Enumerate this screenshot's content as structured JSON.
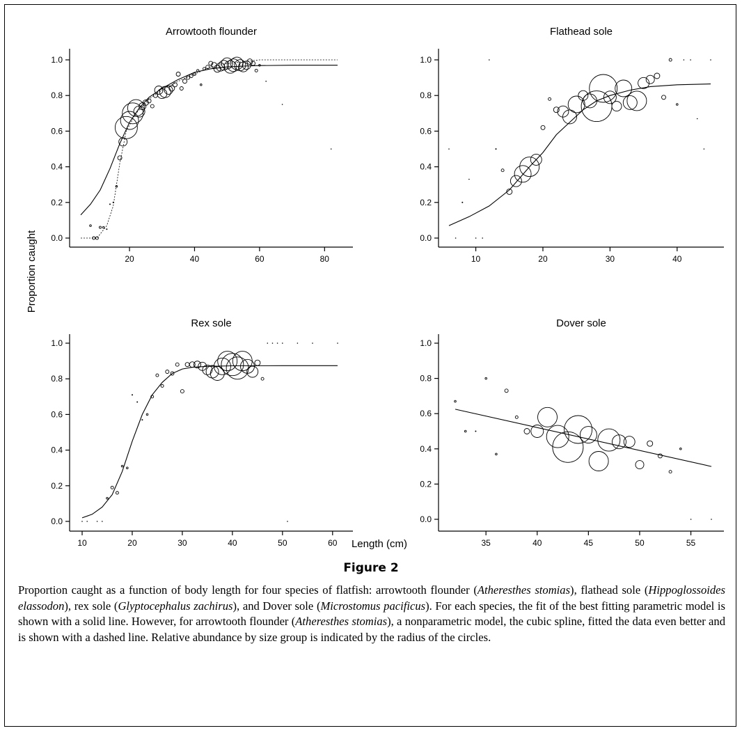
{
  "figure": {
    "label": "Figure 2",
    "x_axis_title": "Length (cm)",
    "y_axis_title": "Proportion caught",
    "caption": [
      {
        "t": "Proportion caught as a function of body length for four species of flatfish: arrowtooth flounder ("
      },
      {
        "t": "Atheresthes stomias",
        "i": true
      },
      {
        "t": "), flathead sole ("
      },
      {
        "t": "Hippoglossoides elassodon",
        "i": true
      },
      {
        "t": "), rex sole ("
      },
      {
        "t": "Glyptocephalus zachirus",
        "i": true
      },
      {
        "t": "), and Dover sole ("
      },
      {
        "t": "Microstomus pacificus",
        "i": true
      },
      {
        "t": "). For each species, the fit of the best fitting parametric model is shown with a solid line. However, for arrowtooth flounder ("
      },
      {
        "t": "Atheresthes stomias",
        "i": true
      },
      {
        "t": "), a nonparametric model, the cubic spline, fitted the data even better and is shown with a dashed line. Relative abundance by size group is indicated by the radius of the circles."
      }
    ]
  },
  "chart_data": [
    {
      "type": "scatter",
      "title": "Arrowtooth flounder",
      "xlim": [
        4,
        85
      ],
      "ylim": [
        0,
        1
      ],
      "xticks": [
        20,
        40,
        60,
        80
      ],
      "yticks": [
        "0.0",
        "0.2",
        "0.4",
        "0.6",
        "0.8",
        "1.0"
      ],
      "points": [
        [
          8,
          0.07,
          1.3
        ],
        [
          9,
          0.0,
          2
        ],
        [
          10,
          0.0,
          2
        ],
        [
          11,
          0.06,
          1.5
        ],
        [
          12,
          0.06,
          1.3
        ],
        [
          13,
          0.05,
          1
        ],
        [
          14,
          0.19,
          1
        ],
        [
          15,
          0.2,
          1
        ],
        [
          16,
          0.29,
          1.3
        ],
        [
          17,
          0.45,
          3
        ],
        [
          18,
          0.54,
          6
        ],
        [
          19,
          0.62,
          16
        ],
        [
          20,
          0.66,
          13
        ],
        [
          21,
          0.7,
          15
        ],
        [
          22,
          0.73,
          12
        ],
        [
          23,
          0.71,
          8
        ],
        [
          24,
          0.74,
          5
        ],
        [
          25,
          0.76,
          4
        ],
        [
          26,
          0.77,
          3
        ],
        [
          27,
          0.74,
          2.5
        ],
        [
          28,
          0.8,
          3
        ],
        [
          29,
          0.83,
          6
        ],
        [
          30,
          0.81,
          7
        ],
        [
          31,
          0.82,
          8
        ],
        [
          32,
          0.83,
          6
        ],
        [
          33,
          0.84,
          4
        ],
        [
          34,
          0.86,
          3
        ],
        [
          35,
          0.92,
          3
        ],
        [
          36,
          0.84,
          2.5
        ],
        [
          37,
          0.88,
          3
        ],
        [
          38,
          0.9,
          2.5
        ],
        [
          39,
          0.91,
          2.5
        ],
        [
          40,
          0.92,
          2
        ],
        [
          41,
          0.94,
          1.6
        ],
        [
          42,
          0.86,
          1.3
        ],
        [
          43,
          0.95,
          2
        ],
        [
          44,
          0.96,
          2.5
        ],
        [
          45,
          0.98,
          3
        ],
        [
          46,
          0.97,
          4
        ],
        [
          47,
          0.95,
          5
        ],
        [
          48,
          0.96,
          6
        ],
        [
          49,
          0.97,
          7
        ],
        [
          50,
          0.98,
          8
        ],
        [
          51,
          0.96,
          9
        ],
        [
          52,
          0.97,
          9
        ],
        [
          53,
          0.98,
          9
        ],
        [
          54,
          0.97,
          8
        ],
        [
          55,
          0.96,
          7
        ],
        [
          56,
          0.97,
          6
        ],
        [
          57,
          0.99,
          4
        ],
        [
          58,
          0.98,
          3
        ],
        [
          59,
          0.94,
          2
        ],
        [
          60,
          0.97,
          1.3
        ],
        [
          62,
          0.88,
          0.8
        ],
        [
          67,
          0.75,
          0.8
        ],
        [
          82,
          0.5,
          0.8
        ]
      ],
      "lines": [
        {
          "style": "solid",
          "points": [
            [
              5,
              0.13
            ],
            [
              8,
              0.19
            ],
            [
              11,
              0.27
            ],
            [
              14,
              0.39
            ],
            [
              17,
              0.53
            ],
            [
              20,
              0.65
            ],
            [
              23,
              0.73
            ],
            [
              26,
              0.79
            ],
            [
              30,
              0.84
            ],
            [
              35,
              0.89
            ],
            [
              40,
              0.93
            ],
            [
              45,
              0.95
            ],
            [
              50,
              0.96
            ],
            [
              55,
              0.965
            ],
            [
              60,
              0.968
            ],
            [
              70,
              0.97
            ],
            [
              84,
              0.97
            ]
          ]
        },
        {
          "style": "dashed",
          "points": [
            [
              5,
              0.0
            ],
            [
              10,
              0.0
            ],
            [
              13,
              0.07
            ],
            [
              15,
              0.18
            ],
            [
              17,
              0.42
            ],
            [
              19,
              0.6
            ],
            [
              22,
              0.7
            ],
            [
              26,
              0.78
            ],
            [
              30,
              0.83
            ],
            [
              35,
              0.88
            ],
            [
              40,
              0.92
            ],
            [
              45,
              0.96
            ],
            [
              50,
              0.98
            ],
            [
              55,
              0.99
            ],
            [
              60,
              1.0
            ],
            [
              84,
              1.0
            ]
          ]
        }
      ]
    },
    {
      "type": "scatter",
      "title": "Flathead sole",
      "xlim": [
        5.5,
        46
      ],
      "ylim": [
        0,
        1
      ],
      "xticks": [
        10,
        20,
        30,
        40
      ],
      "yticks": [
        "0.0",
        "0.2",
        "0.4",
        "0.6",
        "0.8",
        "1.0"
      ],
      "points": [
        [
          6,
          0.5,
          0.8
        ],
        [
          7,
          0.0,
          0.8
        ],
        [
          8,
          0.2,
          1
        ],
        [
          9,
          0.33,
          0.8
        ],
        [
          10,
          0.0,
          0.8
        ],
        [
          11,
          0.0,
          0.8
        ],
        [
          12,
          1.0,
          0.8
        ],
        [
          13,
          0.5,
          1
        ],
        [
          14,
          0.38,
          2
        ],
        [
          15,
          0.26,
          4
        ],
        [
          16,
          0.32,
          8
        ],
        [
          17,
          0.36,
          12
        ],
        [
          18,
          0.4,
          14
        ],
        [
          19,
          0.44,
          8
        ],
        [
          20,
          0.62,
          3
        ],
        [
          21,
          0.78,
          2
        ],
        [
          22,
          0.72,
          4
        ],
        [
          23,
          0.71,
          8
        ],
        [
          24,
          0.68,
          10
        ],
        [
          25,
          0.75,
          12
        ],
        [
          26,
          0.8,
          7
        ],
        [
          27,
          0.77,
          10
        ],
        [
          28,
          0.74,
          22
        ],
        [
          29,
          0.84,
          20
        ],
        [
          30,
          0.79,
          9
        ],
        [
          31,
          0.74,
          7
        ],
        [
          32,
          0.84,
          12
        ],
        [
          33,
          0.76,
          10
        ],
        [
          34,
          0.77,
          14
        ],
        [
          35,
          0.87,
          8
        ],
        [
          36,
          0.89,
          6
        ],
        [
          37,
          0.91,
          4
        ],
        [
          38,
          0.79,
          3
        ],
        [
          39,
          1.0,
          2
        ],
        [
          40,
          0.75,
          1.3
        ],
        [
          41,
          1.0,
          0.8
        ],
        [
          42,
          1.0,
          0.8
        ],
        [
          43,
          0.67,
          0.8
        ],
        [
          44,
          0.5,
          0.8
        ],
        [
          45,
          1.0,
          0.8
        ]
      ],
      "lines": [
        {
          "style": "solid",
          "points": [
            [
              6,
              0.07
            ],
            [
              9,
              0.12
            ],
            [
              12,
              0.18
            ],
            [
              15,
              0.27
            ],
            [
              18,
              0.4
            ],
            [
              20,
              0.48
            ],
            [
              22,
              0.58
            ],
            [
              24,
              0.65
            ],
            [
              26,
              0.72
            ],
            [
              28,
              0.77
            ],
            [
              30,
              0.8
            ],
            [
              33,
              0.83
            ],
            [
              36,
              0.85
            ],
            [
              40,
              0.86
            ],
            [
              45,
              0.865
            ]
          ]
        }
      ]
    },
    {
      "type": "scatter",
      "title": "Rex sole",
      "xlim": [
        9,
        62
      ],
      "ylim": [
        0,
        1
      ],
      "xticks": [
        10,
        20,
        30,
        40,
        50,
        60
      ],
      "yticks": [
        "0.0",
        "0.2",
        "0.4",
        "0.6",
        "0.8",
        "1.0"
      ],
      "points": [
        [
          10,
          0.0,
          0.8
        ],
        [
          11,
          0.0,
          0.8
        ],
        [
          13,
          0.0,
          0.8
        ],
        [
          14,
          0.0,
          0.8
        ],
        [
          15,
          0.13,
          1.3
        ],
        [
          16,
          0.19,
          2
        ],
        [
          17,
          0.16,
          2
        ],
        [
          18,
          0.31,
          1.3
        ],
        [
          19,
          0.3,
          1.3
        ],
        [
          20,
          0.71,
          1
        ],
        [
          21,
          0.67,
          1
        ],
        [
          22,
          0.57,
          1
        ],
        [
          23,
          0.6,
          1.3
        ],
        [
          24,
          0.7,
          2
        ],
        [
          25,
          0.82,
          2
        ],
        [
          26,
          0.76,
          2
        ],
        [
          27,
          0.84,
          2.5
        ],
        [
          28,
          0.83,
          2.5
        ],
        [
          29,
          0.88,
          2.5
        ],
        [
          30,
          0.73,
          2.5
        ],
        [
          31,
          0.88,
          3
        ],
        [
          32,
          0.88,
          4
        ],
        [
          33,
          0.88,
          5
        ],
        [
          34,
          0.87,
          6
        ],
        [
          35,
          0.85,
          7
        ],
        [
          36,
          0.84,
          9
        ],
        [
          37,
          0.83,
          10
        ],
        [
          38,
          0.87,
          12
        ],
        [
          39,
          0.9,
          14
        ],
        [
          40,
          0.88,
          16
        ],
        [
          41,
          0.86,
          16
        ],
        [
          42,
          0.9,
          14
        ],
        [
          43,
          0.87,
          10
        ],
        [
          44,
          0.84,
          8
        ],
        [
          45,
          0.89,
          4
        ],
        [
          46,
          0.8,
          2
        ],
        [
          47,
          1.0,
          0.8
        ],
        [
          48,
          1.0,
          0.8
        ],
        [
          49,
          1.0,
          0.8
        ],
        [
          50,
          1.0,
          0.8
        ],
        [
          51,
          0.0,
          0.8
        ],
        [
          53,
          1.0,
          0.8
        ],
        [
          56,
          1.0,
          0.8
        ],
        [
          61,
          1.0,
          0.8
        ]
      ],
      "lines": [
        {
          "style": "solid",
          "points": [
            [
              10,
              0.02
            ],
            [
              12,
              0.04
            ],
            [
              14,
              0.08
            ],
            [
              16,
              0.15
            ],
            [
              18,
              0.28
            ],
            [
              20,
              0.45
            ],
            [
              22,
              0.6
            ],
            [
              24,
              0.71
            ],
            [
              26,
              0.78
            ],
            [
              28,
              0.83
            ],
            [
              30,
              0.855
            ],
            [
              32,
              0.865
            ],
            [
              35,
              0.87
            ],
            [
              40,
              0.873
            ],
            [
              50,
              0.874
            ],
            [
              61,
              0.874
            ]
          ]
        }
      ]
    },
    {
      "type": "scatter",
      "title": "Dover sole",
      "xlim": [
        31,
        58
      ],
      "ylim": [
        0,
        1
      ],
      "xticks": [
        35,
        40,
        45,
        50,
        55
      ],
      "yticks": [
        "0.0",
        "0.2",
        "0.4",
        "0.6",
        "0.8",
        "1.0"
      ],
      "points": [
        [
          32,
          0.67,
          1.3
        ],
        [
          33,
          0.5,
          1.3
        ],
        [
          34,
          0.5,
          1
        ],
        [
          35,
          0.8,
          1.3
        ],
        [
          36,
          0.37,
          1.3
        ],
        [
          37,
          0.73,
          2.5
        ],
        [
          38,
          0.58,
          2
        ],
        [
          39,
          0.5,
          4
        ],
        [
          40,
          0.5,
          9
        ],
        [
          41,
          0.58,
          14
        ],
        [
          42,
          0.47,
          16
        ],
        [
          43,
          0.41,
          22
        ],
        [
          44,
          0.51,
          20
        ],
        [
          45,
          0.48,
          12
        ],
        [
          46,
          0.33,
          14
        ],
        [
          47,
          0.45,
          16
        ],
        [
          48,
          0.44,
          10
        ],
        [
          49,
          0.44,
          8
        ],
        [
          50,
          0.31,
          6
        ],
        [
          51,
          0.43,
          4
        ],
        [
          52,
          0.36,
          3
        ],
        [
          53,
          0.27,
          2
        ],
        [
          54,
          0.4,
          1.3
        ],
        [
          55,
          0.0,
          0.8
        ],
        [
          57,
          0.0,
          0.8
        ]
      ],
      "lines": [
        {
          "style": "solid",
          "points": [
            [
              32,
              0.625
            ],
            [
              57,
              0.3
            ]
          ]
        }
      ]
    }
  ]
}
